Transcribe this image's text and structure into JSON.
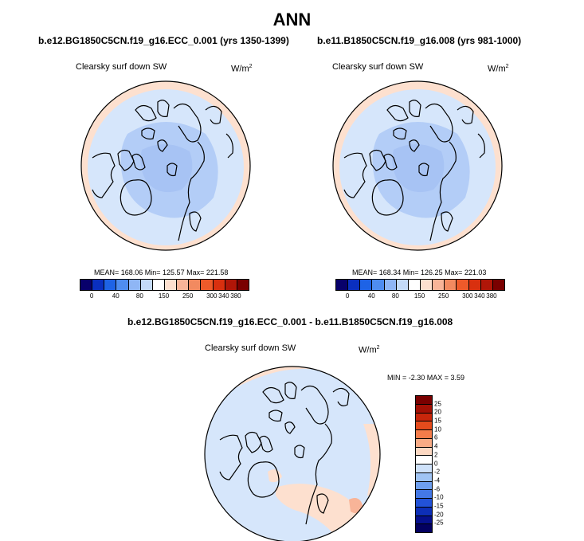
{
  "title": "ANN",
  "panels": [
    {
      "case": "b.e12.BG1850C5CN.f19_g16.ECC_0.001 (yrs 1350-1399)",
      "variable": "Clearsky surf down SW",
      "units_base": "W/m",
      "units_exp": "2",
      "stats": "MEAN= 168.06  Min= 125.57  Max= 221.58"
    },
    {
      "case": "b.e11.B1850C5CN.f19_g16.008 (yrs 981-1000)",
      "variable": "Clearsky surf down SW",
      "units_base": "W/m",
      "units_exp": "2",
      "stats": "MEAN= 168.34  Min= 126.25  Max= 221.03"
    }
  ],
  "diff": {
    "title": "b.e12.BG1850C5CN.f19_g16.ECC_0.001 - b.e11.B1850C5CN.f19_g16.008",
    "variable": "Clearsky surf down SW",
    "units_base": "W/m",
    "units_exp": "2",
    "stats": "MIN = -2.30 MAX =  3.59"
  },
  "colorbar_abs": {
    "colors": [
      "#08006b",
      "#0a2fbf",
      "#1e63e6",
      "#4f8df0",
      "#8fb6f5",
      "#c4daf8",
      "#ffffff",
      "#fde0cf",
      "#f8b498",
      "#f28a60",
      "#ee5a2a",
      "#d9300f",
      "#b01608",
      "#7a0000"
    ],
    "ticks": [
      "0",
      "40",
      "80",
      "150",
      "250",
      "300",
      "340",
      "380"
    ]
  },
  "colorbar_diff": {
    "colors": [
      "#7a0000",
      "#a31005",
      "#c8260b",
      "#e54b1c",
      "#f47c4a",
      "#f8ab85",
      "#fcd8c2",
      "#ffffff",
      "#cfe2fa",
      "#a0c4f4",
      "#6e9fee",
      "#4478e6",
      "#2252d8",
      "#0d2fb8",
      "#06108d",
      "#030060"
    ],
    "ticks": [
      "25",
      "20",
      "15",
      "10",
      "6",
      "4",
      "2",
      "0",
      "-2",
      "-4",
      "-6",
      "-10",
      "-15",
      "-20",
      "-25"
    ]
  }
}
